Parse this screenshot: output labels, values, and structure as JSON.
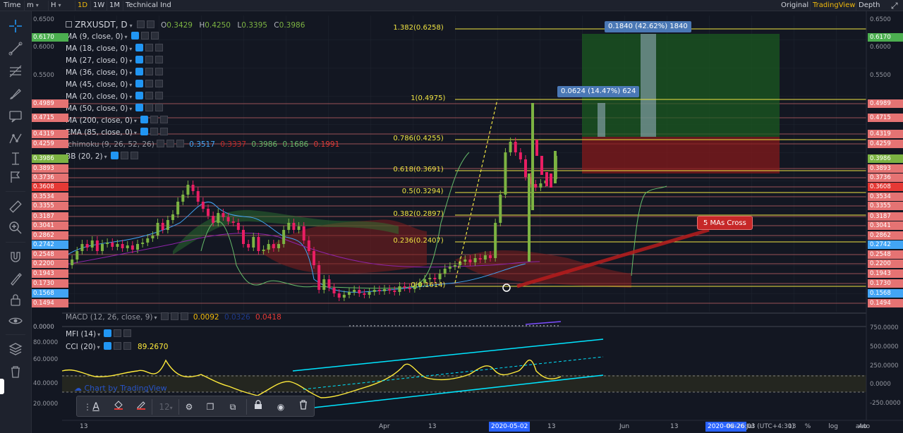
{
  "topbar": {
    "time_label": "Time",
    "interval_m": "m",
    "interval_h": "H",
    "interval_1d": "1D",
    "interval_1w": "1W",
    "interval_1m": "1M",
    "technical_ind": "Technical Ind",
    "view_original": "Original",
    "view_tradingview": "TradingView",
    "view_depth": "Depth"
  },
  "symbol": {
    "name": "ZRXUSDT, D",
    "open_label": "O",
    "open": "0.3429",
    "high_label": "H",
    "high": "0.4250",
    "low_label": "L",
    "low": "0.3395",
    "close_label": "C",
    "close": "0.3986"
  },
  "indicators": [
    {
      "label": "MA (9, close, 0)"
    },
    {
      "label": "MA (18, close, 0)"
    },
    {
      "label": "MA (27, close, 0)"
    },
    {
      "label": "MA (36, close, 0)"
    },
    {
      "label": "MA (45, close, 0)"
    },
    {
      "label": "MA (20, close, 0)"
    },
    {
      "label": "MA (50, close, 0)"
    },
    {
      "label": "MA (200, close, 0)"
    },
    {
      "label": "EMA (85, close, 0)"
    }
  ],
  "ichimoku": {
    "label": "Ichimoku (9, 26, 52, 26)",
    "v1": "0.3517",
    "v2": "0.3337",
    "v3": "0.3986",
    "v4": "0.1686",
    "v5": "0.1991"
  },
  "bb": {
    "label": "BB (20, 2)"
  },
  "macd": {
    "label": "MACD (12, 26, close, 9)",
    "v1": "0.0092",
    "v2": "0.0326",
    "v3": "0.0418",
    "zero": "0.0000"
  },
  "mfi": {
    "label": "MFI (14)"
  },
  "cci": {
    "label": "CCI (20)",
    "value": "89.2670"
  },
  "fib": [
    {
      "label": "1.382(0.6258)"
    },
    {
      "label": "1(0.4975)"
    },
    {
      "label": "0.786(0.4255)"
    },
    {
      "label": "0.618(0.3691)"
    },
    {
      "label": "0.5(0.3294)"
    },
    {
      "label": "0.382(0.2897)"
    },
    {
      "label": "0.236(0.2407)"
    },
    {
      "label": "0(0.1614)"
    }
  ],
  "price_axis_left": [
    "0.6500",
    "0.6170",
    "0.6000",
    "0.5500",
    "0.4989",
    "0.4715",
    "0.4319",
    "0.4259",
    "0.3986",
    "0.3893",
    "0.3736",
    "0.3608",
    "0.3534",
    "0.3355",
    "0.3187",
    "0.3041",
    "0.2862",
    "0.2742",
    "0.2548",
    "0.2200",
    "0.1943",
    "0.1730",
    "0.1568",
    "0.1494"
  ],
  "price_axis_right": [
    "0.6500",
    "0.6170",
    "0.6000",
    "0.5500",
    "0.4989",
    "0.4715",
    "0.4319",
    "0.4259",
    "0.3986",
    "0.3893",
    "0.3736",
    "0.3608",
    "0.3534",
    "0.3355",
    "0.3187",
    "0.3041",
    "0.2862",
    "0.2742",
    "0.2548",
    "0.2200",
    "0.1943",
    "0.1730",
    "0.1568",
    "0.1494"
  ],
  "osc_axis_left": [
    "80.0000",
    "60.0000",
    "40.0000",
    "20.0000"
  ],
  "osc_axis_right": [
    "750.0000",
    "500.0000",
    "250.0000",
    "0.0000",
    "-250.0000"
  ],
  "measure_long": "0.1840 (42.62%) 1840",
  "measure_short": "0.0624 (14.47%) 624",
  "callout": "5 MAs Cross",
  "watermark": "Chart by TradingView",
  "xaxis": [
    "13",
    "Apr",
    "13",
    "2020-05-02",
    "13",
    "Jun",
    "13",
    "2020-06-26",
    "Jul",
    "13",
    "Au"
  ],
  "status": {
    "time": "02:26:03",
    "tz": "(UTC+4:30)",
    "percent": "%",
    "log": "log",
    "auto": "auto"
  },
  "drawbar": {
    "size": "12"
  },
  "colors": {
    "up": "#7cb342",
    "down": "#e91e63",
    "fib": "#f0e442",
    "hline": "#e57373",
    "trend": "#00e5ff",
    "cci": "#ffeb3b",
    "accent": "#2962ff",
    "tv": "#f0b90b"
  }
}
